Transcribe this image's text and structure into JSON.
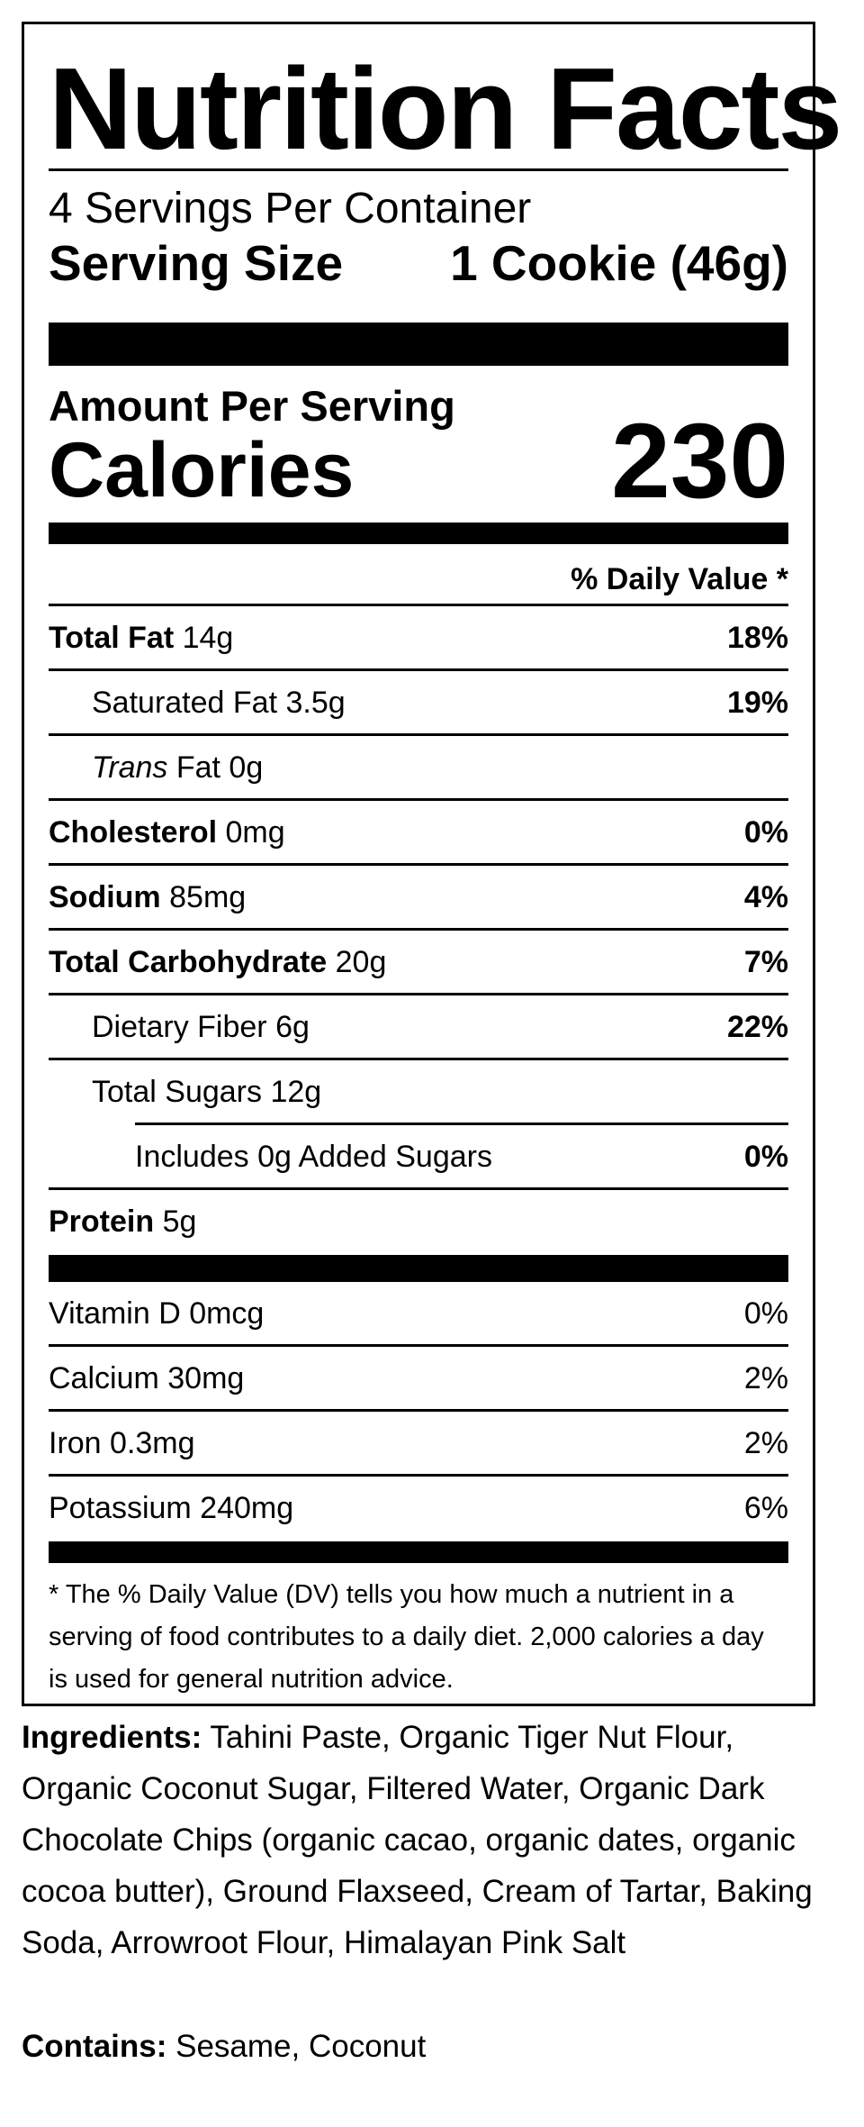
{
  "title": "Nutrition Facts",
  "servings_per_container": "4 Servings Per Container",
  "serving_size": {
    "label": "Serving Size",
    "value": "1 Cookie (46g)"
  },
  "amount_per_serving": "Amount Per Serving",
  "calories": {
    "label": "Calories",
    "value": "230"
  },
  "daily_value_header": "% Daily Value *",
  "nutrients": [
    {
      "name": "Total Fat",
      "amount": "14g",
      "dv": "18%"
    },
    {
      "name": "Saturated Fat",
      "amount": "3.5g",
      "dv": "19%"
    },
    {
      "name_italic": "Trans",
      "name": "Fat",
      "amount": "0g",
      "dv": ""
    },
    {
      "name": "Cholesterol",
      "amount": "0mg",
      "dv": "0%"
    },
    {
      "name": "Sodium",
      "amount": "85mg",
      "dv": "4%"
    },
    {
      "name": "Total Carbohydrate",
      "amount": "20g",
      "dv": "7%"
    },
    {
      "name": "Dietary Fiber",
      "amount": "6g",
      "dv": "22%"
    },
    {
      "name": "Total Sugars",
      "amount": "12g",
      "dv": ""
    },
    {
      "name": "Includes 0g Added Sugars",
      "amount": "",
      "dv": "0%"
    },
    {
      "name": "Protein",
      "amount": "5g",
      "dv": ""
    }
  ],
  "vitamins": [
    {
      "name": "Vitamin D 0mcg",
      "dv": "0%"
    },
    {
      "name": "Calcium 30mg",
      "dv": "2%"
    },
    {
      "name": "Iron 0.3mg",
      "dv": "2%"
    },
    {
      "name": "Potassium 240mg",
      "dv": "6%"
    }
  ],
  "footnote": "* The % Daily Value (DV) tells you how much a nutrient in a serving of food contributes to a daily diet. 2,000 calories a day is used for general nutrition advice.",
  "ingredients": {
    "label": "Ingredients:",
    "text": "Tahini Paste, Organic Tiger Nut Flour, Organic Coconut Sugar, Filtered Water, Organic Dark Chocolate Chips (organic cacao, organic dates, organic cocoa butter), Ground Flaxseed, Cream of Tartar, Baking Soda, Arrowroot Flour, Himalayan Pink Salt"
  },
  "contains": {
    "label": "Contains:",
    "text": "Sesame, Coconut"
  }
}
